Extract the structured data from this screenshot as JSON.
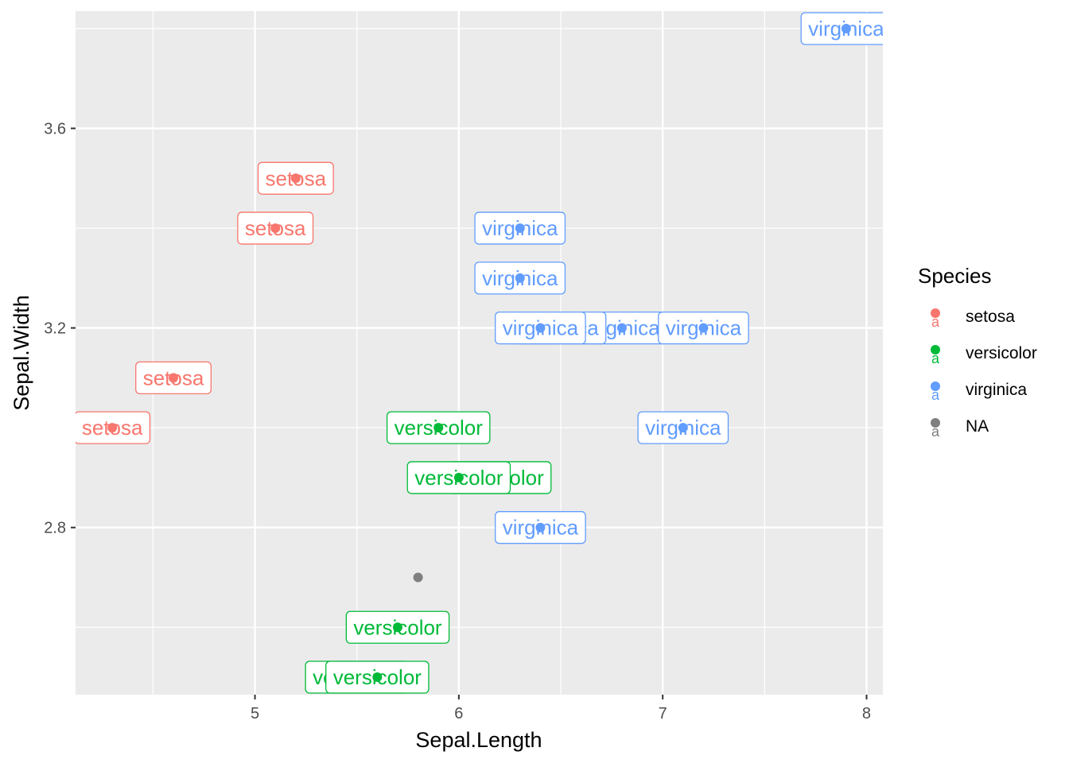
{
  "chart_data": {
    "type": "scatter",
    "title": "",
    "xlabel": "Sepal.Length",
    "ylabel": "Sepal.Width",
    "xlim": [
      4.12,
      8.08
    ],
    "ylim": [
      2.465,
      3.835
    ],
    "x_ticks": [
      5,
      6,
      7,
      8
    ],
    "y_ticks": [
      2.8,
      3.2,
      3.6
    ],
    "x_tick_labels": [
      "5",
      "6",
      "7",
      "8"
    ],
    "y_tick_labels": [
      "2.8",
      "3.2",
      "3.6"
    ],
    "grid": true,
    "legend": {
      "title": "Species",
      "placement": "right",
      "entries": [
        {
          "name": "setosa",
          "color": "#F8766D"
        },
        {
          "name": "versicolor",
          "color": "#00BA38"
        },
        {
          "name": "virginica",
          "color": "#619CFF"
        },
        {
          "name": "NA",
          "color": "#7F7F7F"
        }
      ]
    },
    "series": [
      {
        "name": "setosa",
        "color": "#F8766D",
        "points": [
          {
            "x": 5.2,
            "y": 3.5,
            "label": "setosa"
          },
          {
            "x": 5.1,
            "y": 3.4,
            "label": "setosa"
          },
          {
            "x": 4.6,
            "y": 3.1,
            "label": "setosa"
          },
          {
            "x": 4.3,
            "y": 3.0,
            "label": "setosa"
          }
        ]
      },
      {
        "name": "versicolor",
        "color": "#00BA38",
        "points": [
          {
            "x": 5.9,
            "y": 3.0,
            "label": "versicolor"
          },
          {
            "x": 6.2,
            "y": 2.9,
            "label": "versicolor"
          },
          {
            "x": 6.0,
            "y": 2.9,
            "label": "versicolor"
          },
          {
            "x": 5.7,
            "y": 2.6,
            "label": "versicolor"
          },
          {
            "x": 5.5,
            "y": 2.5,
            "label": "versicolor"
          },
          {
            "x": 5.6,
            "y": 2.5,
            "label": "versicolor"
          }
        ]
      },
      {
        "name": "virginica",
        "color": "#619CFF",
        "points": [
          {
            "x": 7.9,
            "y": 3.8,
            "label": "virginica"
          },
          {
            "x": 6.3,
            "y": 3.4,
            "label": "virginica"
          },
          {
            "x": 6.3,
            "y": 3.3,
            "label": "virginica"
          },
          {
            "x": 6.8,
            "y": 3.2,
            "label": "virginica"
          },
          {
            "x": 6.5,
            "y": 3.2,
            "label": "virginica"
          },
          {
            "x": 6.4,
            "y": 3.2,
            "label": "virginica"
          },
          {
            "x": 7.2,
            "y": 3.2,
            "label": "virginica"
          },
          {
            "x": 7.1,
            "y": 3.0,
            "label": "virginica"
          },
          {
            "x": 6.4,
            "y": 2.8,
            "label": "virginica"
          }
        ]
      },
      {
        "name": "NA",
        "color": "#7F7F7F",
        "points": [
          {
            "x": 5.8,
            "y": 2.7,
            "label": ""
          }
        ]
      }
    ]
  }
}
